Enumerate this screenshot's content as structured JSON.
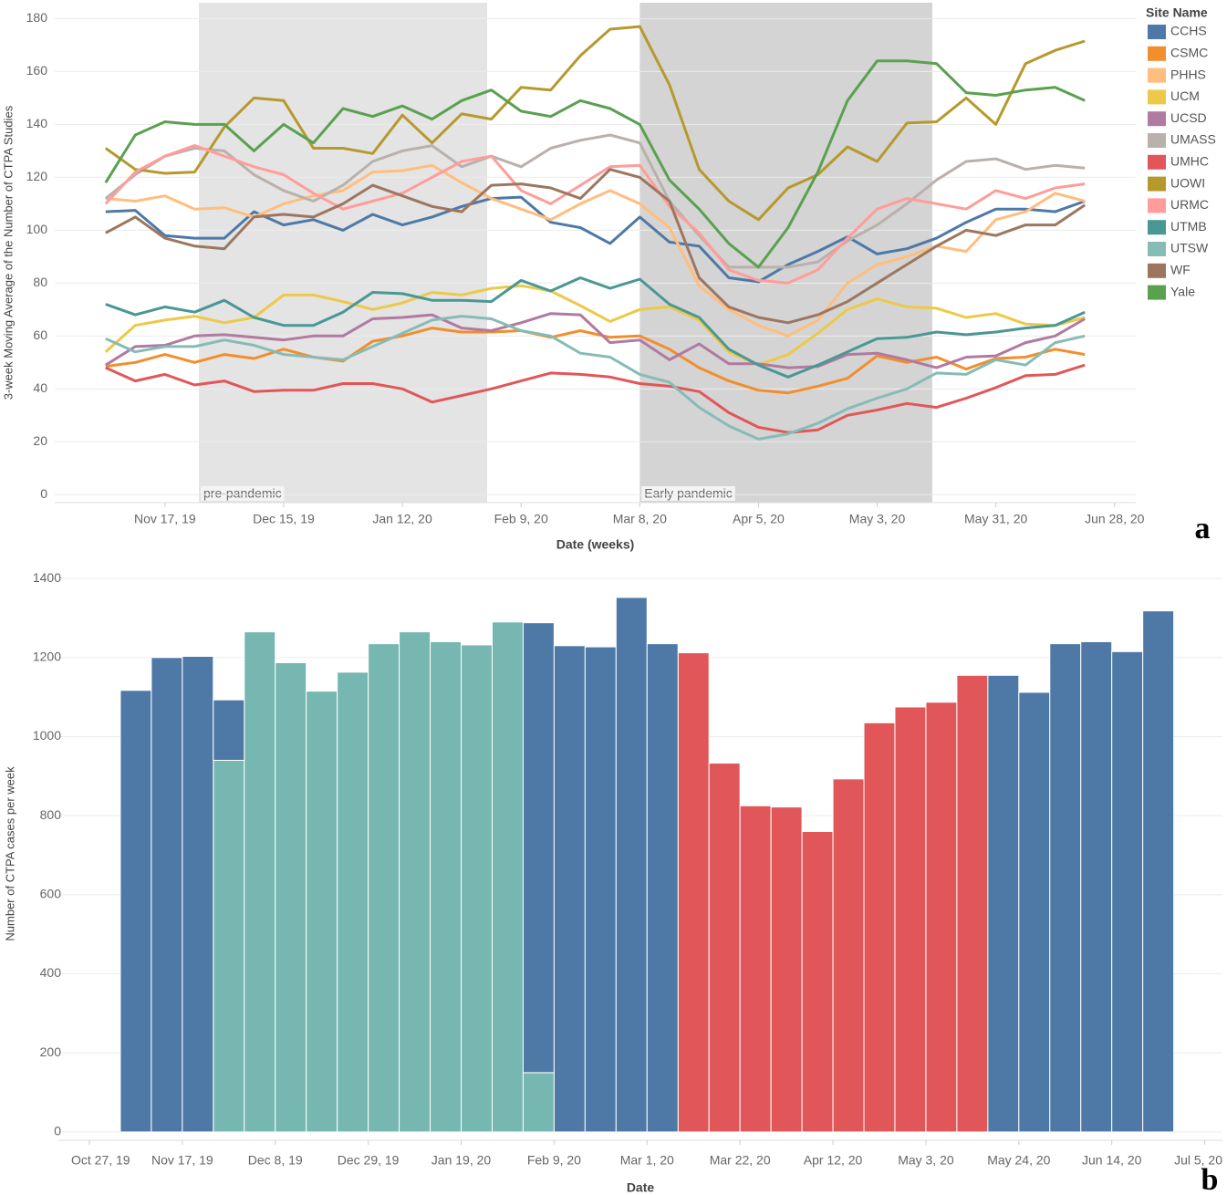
{
  "chart_data": [
    {
      "type": "line",
      "x_label": "Date (weeks)",
      "y_label": "3-week Moving Average of the Number of CTPA Studies",
      "panel_label": "a",
      "legend_title": "Site Name",
      "legend": "right",
      "grid": true,
      "xlim": [
        "2019-10-22",
        "2020-07-03"
      ],
      "ylim": [
        -3,
        186
      ],
      "yticks": [
        0,
        20,
        40,
        60,
        80,
        100,
        120,
        140,
        160,
        180
      ],
      "xticks": [
        {
          "value": "2019-11-17",
          "label": "Nov 17, 19"
        },
        {
          "value": "2019-12-15",
          "label": "Dec 15, 19"
        },
        {
          "value": "2020-01-12",
          "label": "Jan 12, 20"
        },
        {
          "value": "2020-02-09",
          "label": "Feb 9, 20"
        },
        {
          "value": "2020-03-08",
          "label": "Mar 8, 20"
        },
        {
          "value": "2020-04-05",
          "label": "Apr 5, 20"
        },
        {
          "value": "2020-05-03",
          "label": "May 3, 20"
        },
        {
          "value": "2020-05-31",
          "label": "May 31, 20"
        },
        {
          "value": "2020-06-28",
          "label": "Jun 28, 20"
        }
      ],
      "regions": [
        {
          "label": "pre-pandemic",
          "start": "2019-11-25",
          "end": "2020-02-01",
          "color": "#e4e4e4"
        },
        {
          "label": "Early pandemic",
          "start": "2020-03-08",
          "end": "2020-05-16",
          "color": "#d4d4d4"
        }
      ],
      "x": [
        "2019-11-03",
        "2019-11-10",
        "2019-11-17",
        "2019-11-24",
        "2019-12-01",
        "2019-12-08",
        "2019-12-15",
        "2019-12-22",
        "2019-12-29",
        "2020-01-05",
        "2020-01-12",
        "2020-01-19",
        "2020-01-26",
        "2020-02-02",
        "2020-02-09",
        "2020-02-16",
        "2020-02-23",
        "2020-03-01",
        "2020-03-08",
        "2020-03-15",
        "2020-03-22",
        "2020-03-29",
        "2020-04-05",
        "2020-04-12",
        "2020-04-19",
        "2020-04-26",
        "2020-05-03",
        "2020-05-10",
        "2020-05-17",
        "2020-05-24",
        "2020-05-31",
        "2020-06-07",
        "2020-06-14",
        "2020-06-21"
      ],
      "series": [
        {
          "name": "CCHS",
          "color": "#4e79a7",
          "values": [
            107,
            107.5,
            98,
            97,
            97,
            107,
            102,
            104,
            100,
            106,
            102,
            105,
            109,
            112,
            112.5,
            103,
            101,
            95,
            105,
            95.5,
            94,
            82,
            80.5,
            87,
            92,
            97.5,
            91,
            93,
            97,
            103,
            108,
            108,
            107,
            111
          ]
        },
        {
          "name": "CSMC",
          "color": "#f28e2b",
          "values": [
            48.5,
            50,
            53,
            50,
            53,
            51.5,
            55,
            52,
            50.5,
            58,
            60,
            63,
            61.5,
            61.5,
            62,
            59.5,
            62,
            59.5,
            60,
            55,
            48,
            43,
            39.5,
            38.5,
            41,
            44,
            52.5,
            50,
            52,
            47.5,
            51.5,
            52,
            55,
            53
          ]
        },
        {
          "name": "PHHS",
          "color": "#ffbe7d",
          "values": [
            112,
            111,
            113,
            108,
            108.5,
            105,
            110,
            113,
            115,
            122,
            122.5,
            124.5,
            118,
            112,
            108,
            104,
            110,
            115,
            110,
            101,
            79,
            70,
            64,
            60,
            66,
            80,
            87,
            90,
            94,
            92,
            104,
            107,
            114,
            111
          ]
        },
        {
          "name": "UCM",
          "color": "#edc948",
          "values": [
            54,
            64,
            66,
            67.5,
            65,
            67,
            75.5,
            75.5,
            73,
            70,
            72.5,
            76.5,
            75.5,
            78,
            79,
            77,
            71.5,
            65.5,
            70,
            71,
            66,
            54,
            49,
            53,
            61,
            70,
            74,
            71,
            70.5,
            67,
            68.5,
            64.5,
            64,
            67
          ]
        },
        {
          "name": "UCSD",
          "color": "#b07aa1",
          "values": [
            49,
            56,
            56.5,
            60,
            60.5,
            59.5,
            58.5,
            60,
            60,
            66.5,
            67,
            68,
            63,
            62,
            65,
            68.5,
            68,
            57.5,
            58.5,
            51,
            57,
            49.5,
            49.5,
            48,
            48.5,
            53,
            53.5,
            51,
            48,
            52,
            52.5,
            57.5,
            60,
            66.5
          ]
        },
        {
          "name": "UMASS",
          "color": "#bab0ac",
          "values": [
            112,
            121,
            128,
            131,
            130,
            121,
            115,
            111,
            117,
            126,
            130,
            132,
            124,
            128,
            124,
            131,
            134,
            136,
            133,
            111,
            98,
            86,
            86,
            86,
            88,
            96,
            102,
            110,
            119,
            126,
            127,
            123,
            124.5,
            123.5
          ]
        },
        {
          "name": "UMHC",
          "color": "#e15759",
          "values": [
            48,
            43,
            45.5,
            41.5,
            43,
            39,
            39.5,
            39.5,
            42,
            42,
            40,
            35,
            37.5,
            40,
            43,
            46,
            45.5,
            44.5,
            42,
            41,
            39,
            31,
            25.5,
            23.5,
            24.5,
            30,
            32,
            34.5,
            33,
            36.5,
            40.5,
            45,
            45.5,
            49
          ]
        },
        {
          "name": "UOWI",
          "color": "#b6992d",
          "values": [
            131,
            123,
            121.5,
            122,
            139,
            150,
            149,
            131,
            131,
            129,
            143.5,
            133,
            144,
            142,
            154,
            153,
            166,
            176,
            177,
            155,
            123,
            111,
            104,
            116,
            121,
            131.5,
            126,
            140.5,
            141,
            150,
            140,
            163,
            168,
            171.5
          ]
        },
        {
          "name": "URMC",
          "color": "#ff9d9a",
          "values": [
            110,
            122,
            128,
            132,
            128,
            124,
            121,
            114,
            108,
            111,
            114,
            120,
            126,
            128,
            115,
            110,
            117,
            124,
            124.5,
            109,
            99,
            85,
            81,
            80,
            85,
            97,
            108,
            112,
            110,
            108,
            115,
            112,
            116,
            117.5
          ]
        },
        {
          "name": "UTMB",
          "color": "#499894",
          "values": [
            72,
            68,
            71,
            69,
            73.5,
            67,
            64,
            64,
            69,
            76.5,
            76,
            73.5,
            73.5,
            73,
            81,
            77,
            82,
            78,
            81.5,
            72,
            67,
            55,
            49,
            44.5,
            49,
            54,
            59,
            59.5,
            61.5,
            60.5,
            61.5,
            63,
            64,
            69
          ]
        },
        {
          "name": "UTSW",
          "color": "#86bcb6",
          "values": [
            59,
            54,
            56,
            56,
            58.5,
            56.5,
            53,
            52,
            51,
            56,
            61,
            66,
            67.5,
            66.5,
            62,
            60,
            53.5,
            52,
            45.5,
            42.5,
            33,
            26,
            21,
            23,
            27,
            32.5,
            36.5,
            40,
            46,
            45.5,
            51,
            49,
            57.5,
            60
          ]
        },
        {
          "name": "WF",
          "color": "#9d7660",
          "values": [
            99,
            105,
            97,
            94,
            93,
            105,
            106,
            105,
            110,
            117,
            113,
            109,
            107,
            117,
            117.5,
            116,
            112,
            123,
            120,
            111,
            82,
            71,
            67,
            65,
            68,
            73,
            80,
            87,
            94,
            100,
            98,
            102,
            102,
            109.5
          ]
        },
        {
          "name": "Yale",
          "color": "#59a14f",
          "values": [
            118,
            136,
            141,
            140,
            140,
            130,
            140,
            133,
            146,
            143,
            147,
            142,
            149,
            153,
            145,
            143,
            149,
            146,
            140,
            119,
            108,
            95,
            86,
            101,
            122,
            149,
            164,
            164,
            163,
            152,
            151,
            153,
            154,
            149
          ]
        }
      ]
    },
    {
      "type": "bar",
      "x_label": "Date",
      "y_label": "Number of CTPA cases per week",
      "panel_label": "b",
      "grid": true,
      "xlim": [
        "2019-10-20",
        "2020-07-09"
      ],
      "ylim": [
        -21,
        1428
      ],
      "yticks": [
        0,
        200,
        400,
        600,
        800,
        1000,
        1200,
        1400
      ],
      "xticks": [
        {
          "value": "2019-10-27",
          "label": "Oct 27, 19"
        },
        {
          "value": "2019-11-17",
          "label": "Nov 17, 19"
        },
        {
          "value": "2019-12-08",
          "label": "Dec 8, 19"
        },
        {
          "value": "2019-12-29",
          "label": "Dec 29, 19"
        },
        {
          "value": "2020-01-19",
          "label": "Jan 19, 20"
        },
        {
          "value": "2020-02-09",
          "label": "Feb 9, 20"
        },
        {
          "value": "2020-03-01",
          "label": "Mar 1, 20"
        },
        {
          "value": "2020-03-22",
          "label": "Mar 22, 20"
        },
        {
          "value": "2020-04-12",
          "label": "Apr 12, 20"
        },
        {
          "value": "2020-05-03",
          "label": "May 3, 20"
        },
        {
          "value": "2020-05-24",
          "label": "May 24, 20"
        },
        {
          "value": "2020-06-14",
          "label": "Jun 14, 20"
        },
        {
          "value": "2020-07-05",
          "label": "Jul 5, 20"
        }
      ],
      "x": [
        "2019-11-03",
        "2019-11-10",
        "2019-11-17",
        "2019-11-24",
        "2019-12-01",
        "2019-12-08",
        "2019-12-15",
        "2019-12-22",
        "2019-12-29",
        "2020-01-05",
        "2020-01-12",
        "2020-01-19",
        "2020-01-26",
        "2020-02-02",
        "2020-02-09",
        "2020-02-16",
        "2020-02-23",
        "2020-03-01",
        "2020-03-08",
        "2020-03-15",
        "2020-03-22",
        "2020-03-29",
        "2020-04-05",
        "2020-04-12",
        "2020-04-19",
        "2020-04-26",
        "2020-05-03",
        "2020-05-10",
        "2020-05-17",
        "2020-05-24",
        "2020-05-31",
        "2020-06-07",
        "2020-06-14",
        "2020-06-21"
      ],
      "series": [
        {
          "color": "#76b7b2",
          "values": [
            null,
            null,
            null,
            940,
            1265,
            1187,
            1115,
            1163,
            1235,
            1265,
            1240,
            1232,
            1290,
            150,
            null,
            null,
            null,
            null,
            null,
            null,
            null,
            null,
            null,
            null,
            null,
            null,
            null,
            null,
            null,
            null,
            null,
            null,
            null,
            null
          ]
        },
        {
          "color": "#e15759",
          "values": [
            null,
            null,
            null,
            null,
            null,
            null,
            null,
            null,
            null,
            null,
            null,
            null,
            null,
            null,
            null,
            null,
            null,
            null,
            1212,
            933,
            825,
            822,
            760,
            893,
            1035,
            1075,
            1087,
            1155,
            null,
            null,
            null,
            null,
            null,
            null
          ]
        },
        {
          "color": "#4e79a7",
          "values": [
            1117,
            1200,
            1203,
            153,
            null,
            null,
            null,
            null,
            null,
            null,
            null,
            null,
            null,
            1138,
            1230,
            1227,
            1352,
            1235,
            null,
            null,
            null,
            null,
            null,
            null,
            null,
            null,
            null,
            null,
            1155,
            1112,
            1235,
            1240,
            1215,
            1318
          ]
        }
      ]
    }
  ]
}
